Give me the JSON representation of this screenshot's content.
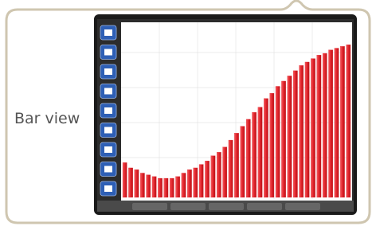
{
  "caption": "Bar view",
  "chart_data": {
    "type": "bar",
    "values": [
      20,
      17,
      16,
      14,
      13,
      12,
      11,
      11,
      11,
      12,
      14,
      16,
      17,
      19,
      21,
      24,
      26,
      29,
      33,
      37,
      41,
      45,
      49,
      52,
      57,
      60,
      64,
      67,
      70,
      73,
      76,
      78,
      80,
      82,
      83,
      85,
      86,
      87,
      88
    ],
    "color": "#e3242b",
    "ylim": [
      0,
      100
    ]
  }
}
